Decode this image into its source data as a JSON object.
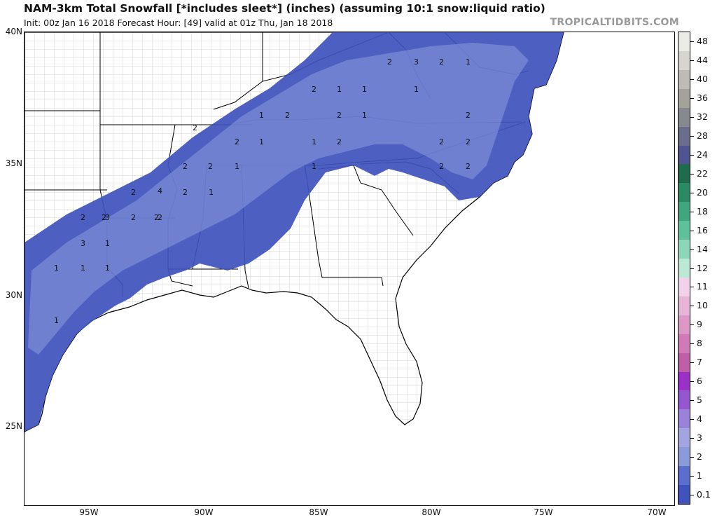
{
  "header": {
    "title": "NAM-3km Total Snowfall [*includes sleet*] (inches) (assuming 10:1 snow:liquid ratio)",
    "subtitle": "Init: 00z Jan 16 2018   Forecast Hour: [49]   valid at 01z Thu, Jan 18 2018",
    "brand": "TROPICALTIDBITS.COM"
  },
  "axes": {
    "lat_labels": [
      "40N",
      "35N",
      "30N",
      "25N"
    ],
    "lon_labels": [
      "95W",
      "90W",
      "85W",
      "80W",
      "75W",
      "70W"
    ]
  },
  "colorbar": {
    "labels": [
      "48",
      "44",
      "40",
      "36",
      "32",
      "28",
      "24",
      "22",
      "20",
      "18",
      "16",
      "14",
      "12",
      "11",
      "10",
      "9",
      "8",
      "7",
      "6",
      "5",
      "4",
      "3",
      "2",
      "1",
      "0.1"
    ],
    "colors": [
      "#ecece6",
      "#d6d6cf",
      "#bdbdb5",
      "#a3a39c",
      "#888890",
      "#6b6d8c",
      "#4f5590",
      "#1e6b4d",
      "#2a8a63",
      "#40a67f",
      "#5fc19b",
      "#8cd6bb",
      "#bce8d8",
      "#f2d2e8",
      "#e8b5d8",
      "#dd98c8",
      "#d07ab8",
      "#c15ea8",
      "#9b30c9",
      "#9557d0",
      "#9a82d8",
      "#a2a5df",
      "#8b9bda",
      "#5b6ed0",
      "#3e53bd"
    ]
  },
  "map": {
    "contour_labels": [
      "2",
      "3",
      "2",
      "1",
      "2",
      "1",
      "1",
      "1",
      "1",
      "2",
      "2",
      "1",
      "2",
      "1",
      "2",
      "2",
      "2",
      "1",
      "2",
      "1",
      "2",
      "2",
      "2",
      "1",
      "2",
      "2",
      "2",
      "1",
      "2",
      "2",
      "4",
      "2",
      "2",
      "3",
      "3",
      "2",
      "2",
      "1",
      "1",
      "1",
      "1",
      "1"
    ]
  }
}
